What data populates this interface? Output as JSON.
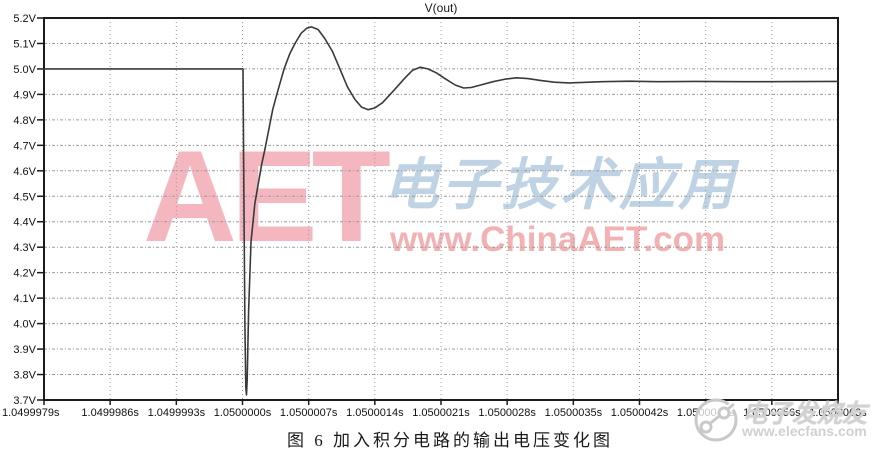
{
  "chart_data": {
    "type": "line",
    "title": "V(out)",
    "xlabel": "",
    "ylabel": "",
    "grid": true,
    "ylim": [
      3.7,
      5.2
    ],
    "y_tick_step_V": 0.1,
    "x_tick_step_s": 7e-07,
    "x_range_us_rel": [
      0,
      8.4
    ],
    "x_tick_labels": [
      "1.0499979s",
      "1.0499986s",
      "1.0499993s",
      "1.0500000s",
      "1.0500007s",
      "1.0500014s",
      "1.0500021s",
      "1.0500028s",
      "1.0500035s",
      "1.0500042s",
      "1.0500049s",
      "1.0500056s",
      "1.0500063s"
    ],
    "y_tick_labels": [
      "5.2V",
      "5.1V",
      "5.0V",
      "4.9V",
      "4.8V",
      "4.7V",
      "4.6V",
      "4.5V",
      "4.4V",
      "4.3V",
      "4.2V",
      "4.1V",
      "4.0V",
      "3.9V",
      "3.8V",
      "3.7V"
    ],
    "series": [
      {
        "name": "V(out)",
        "color": "#3a3a3a",
        "points_us_v": [
          [
            0.0,
            5.0
          ],
          [
            1.0,
            5.0
          ],
          [
            2.08,
            5.0
          ],
          [
            2.105,
            5.0
          ],
          [
            2.115,
            4.5
          ],
          [
            2.125,
            4.0
          ],
          [
            2.135,
            3.75
          ],
          [
            2.142,
            3.72
          ],
          [
            2.15,
            3.78
          ],
          [
            2.165,
            4.05
          ],
          [
            2.19,
            4.32
          ],
          [
            2.23,
            4.47
          ],
          [
            2.3,
            4.62
          ],
          [
            2.34,
            4.69
          ],
          [
            2.42,
            4.84
          ],
          [
            2.47,
            4.91
          ],
          [
            2.54,
            5.0
          ],
          [
            2.6,
            5.06
          ],
          [
            2.655,
            5.1
          ],
          [
            2.72,
            5.14
          ],
          [
            2.78,
            5.16
          ],
          [
            2.83,
            5.165
          ],
          [
            2.9,
            5.155
          ],
          [
            2.97,
            5.12
          ],
          [
            3.05,
            5.07
          ],
          [
            3.13,
            5.0
          ],
          [
            3.21,
            4.93
          ],
          [
            3.29,
            4.88
          ],
          [
            3.36,
            4.85
          ],
          [
            3.43,
            4.84
          ],
          [
            3.5,
            4.847
          ],
          [
            3.58,
            4.867
          ],
          [
            3.7,
            4.915
          ],
          [
            3.82,
            4.965
          ],
          [
            3.9,
            4.995
          ],
          [
            3.98,
            5.007
          ],
          [
            4.06,
            5.0
          ],
          [
            4.15,
            4.985
          ],
          [
            4.25,
            4.96
          ],
          [
            4.35,
            4.937
          ],
          [
            4.44,
            4.925
          ],
          [
            4.52,
            4.927
          ],
          [
            4.62,
            4.937
          ],
          [
            4.75,
            4.95
          ],
          [
            4.88,
            4.96
          ],
          [
            5.0,
            4.965
          ],
          [
            5.12,
            4.962
          ],
          [
            5.25,
            4.955
          ],
          [
            5.4,
            4.948
          ],
          [
            5.55,
            4.945
          ],
          [
            5.7,
            4.947
          ],
          [
            5.9,
            4.95
          ],
          [
            6.2,
            4.952
          ],
          [
            6.5,
            4.95
          ],
          [
            6.9,
            4.951
          ],
          [
            7.4,
            4.95
          ],
          [
            8.4,
            4.951
          ]
        ]
      }
    ],
    "legend": null
  },
  "caption": "图 6  加入积分电路的输出电压变化图",
  "watermarks": {
    "aet": "AET",
    "chinese": "电子技术应用",
    "url": "www.ChinaAET.com",
    "elecfans_cn": "电子发烧友",
    "elecfans_url": "www.elecfans.com"
  },
  "colors": {
    "curve": "#3a3a3a",
    "grid": "#9a9a9a",
    "border": "#1b1b1b",
    "tick_text": "#111111",
    "aet_pink": "#f3abb6",
    "chinaaet_url_pink": "#f3a4a6",
    "calligraphy_blue": "#b9cfe3",
    "elecfans_gray": "#d0d0d0",
    "background": "#ffffff"
  }
}
